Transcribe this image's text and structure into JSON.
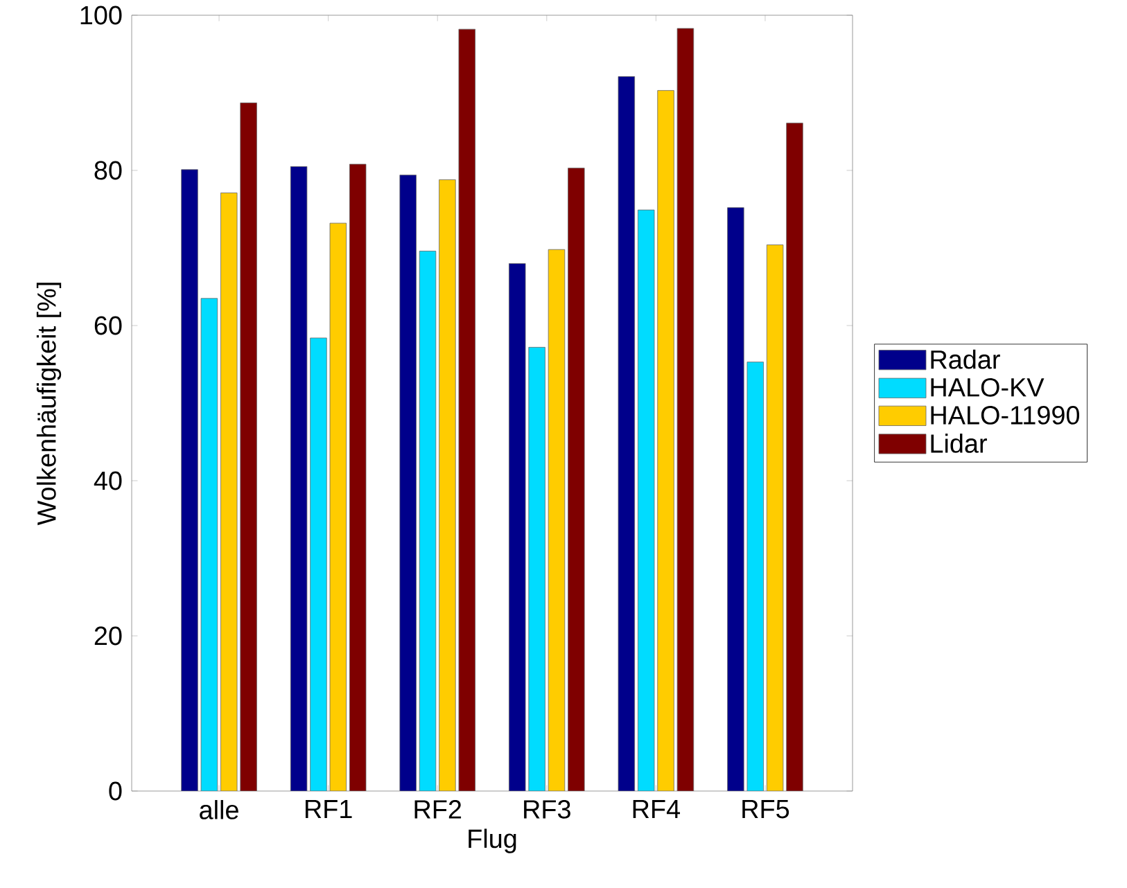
{
  "chart_data": {
    "type": "bar",
    "xlabel": "Flug",
    "ylabel": "Wolkenhäufigkeit [%]",
    "categories": [
      "alle",
      "RF1",
      "RF2",
      "RF3",
      "RF4",
      "RF5"
    ],
    "series": [
      {
        "name": "Radar",
        "color": "#00008b",
        "values": [
          80.1,
          80.5,
          79.4,
          68.0,
          92.1,
          75.2
        ]
      },
      {
        "name": "HALO-KV",
        "color": "#00dcff",
        "values": [
          63.5,
          58.4,
          69.6,
          57.2,
          74.9,
          55.3
        ]
      },
      {
        "name": "HALO-11990",
        "color": "#ffcc00",
        "values": [
          77.1,
          73.2,
          78.8,
          69.8,
          90.3,
          70.4
        ]
      },
      {
        "name": "Lidar",
        "color": "#7f0000",
        "values": [
          88.7,
          80.8,
          98.2,
          80.3,
          98.3,
          86.1
        ]
      }
    ],
    "ylim": [
      0,
      100
    ],
    "yticks": [
      0,
      20,
      40,
      60,
      80,
      100
    ],
    "legend": "right"
  }
}
